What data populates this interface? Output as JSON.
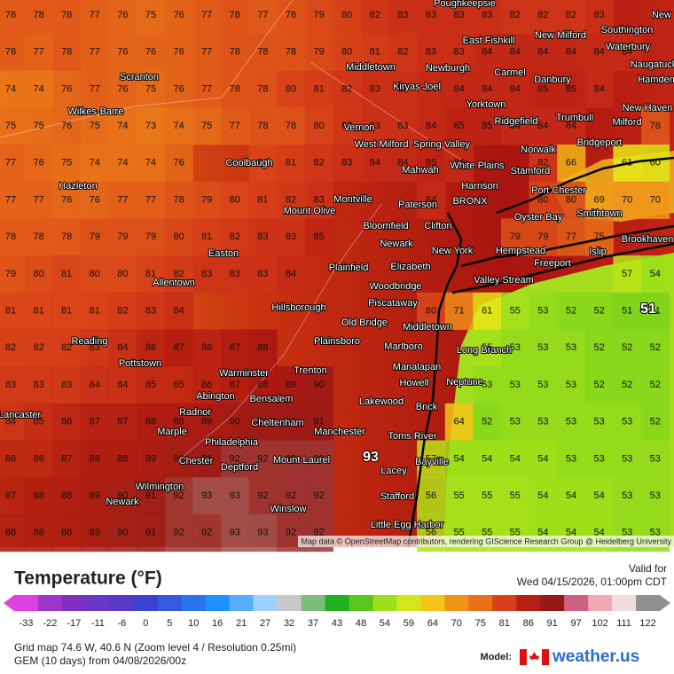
{
  "map": {
    "attribution": "Map data © OpenStreetMap contributors, rendering GIScience Research Group @ Heidelberg University",
    "max_label": "93",
    "min_label": "51",
    "grid": [
      [
        78,
        78,
        78,
        77,
        76,
        75,
        76,
        77,
        78,
        77,
        78,
        79,
        80,
        82,
        83,
        83,
        83,
        83,
        82,
        82,
        82,
        83,
        null,
        null
      ],
      [
        78,
        77,
        78,
        77,
        76,
        76,
        76,
        77,
        78,
        78,
        78,
        79,
        80,
        81,
        82,
        83,
        83,
        84,
        84,
        84,
        84,
        84,
        84,
        null
      ],
      [
        74,
        74,
        76,
        77,
        76,
        75,
        76,
        77,
        78,
        78,
        80,
        81,
        82,
        83,
        83,
        84,
        84,
        84,
        84,
        85,
        85,
        84,
        null,
        null
      ],
      [
        75,
        75,
        76,
        75,
        74,
        73,
        74,
        75,
        77,
        78,
        78,
        80,
        82,
        83,
        83,
        84,
        85,
        85,
        84,
        84,
        84,
        null,
        null,
        78
      ],
      [
        77,
        76,
        75,
        74,
        74,
        74,
        76,
        null,
        null,
        80,
        81,
        82,
        83,
        84,
        84,
        85,
        84,
        null,
        null,
        82,
        66,
        null,
        61,
        60
      ],
      [
        77,
        77,
        76,
        76,
        77,
        77,
        78,
        79,
        80,
        81,
        82,
        83,
        null,
        null,
        null,
        84,
        null,
        null,
        null,
        80,
        80,
        69,
        70,
        70
      ],
      [
        78,
        78,
        78,
        79,
        79,
        79,
        80,
        81,
        82,
        83,
        83,
        85,
        null,
        null,
        null,
        null,
        null,
        null,
        79,
        79,
        77,
        75,
        null,
        null
      ],
      [
        79,
        80,
        81,
        80,
        80,
        81,
        82,
        83,
        83,
        83,
        84,
        null,
        null,
        null,
        null,
        null,
        null,
        null,
        null,
        null,
        null,
        null,
        57,
        54
      ],
      [
        81,
        81,
        81,
        81,
        82,
        83,
        84,
        null,
        null,
        null,
        null,
        null,
        null,
        null,
        null,
        80,
        71,
        61,
        55,
        53,
        52,
        52,
        51,
        51
      ],
      [
        82,
        82,
        82,
        83,
        84,
        86,
        87,
        86,
        87,
        88,
        null,
        null,
        null,
        null,
        null,
        null,
        null,
        55,
        53,
        53,
        53,
        52,
        52,
        52
      ],
      [
        83,
        83,
        83,
        84,
        84,
        85,
        85,
        86,
        87,
        88,
        89,
        90,
        null,
        null,
        null,
        null,
        null,
        53,
        53,
        53,
        53,
        52,
        52,
        52
      ],
      [
        84,
        85,
        86,
        87,
        87,
        88,
        88,
        89,
        90,
        91,
        91,
        91,
        null,
        null,
        null,
        null,
        64,
        52,
        53,
        53,
        53,
        53,
        53,
        52
      ],
      [
        86,
        86,
        87,
        88,
        88,
        89,
        90,
        91,
        92,
        92,
        92,
        92,
        null,
        null,
        null,
        57,
        54,
        54,
        54,
        54,
        53,
        53,
        53,
        53
      ],
      [
        87,
        88,
        88,
        89,
        90,
        91,
        92,
        93,
        93,
        92,
        92,
        92,
        null,
        null,
        null,
        56,
        55,
        55,
        55,
        54,
        54,
        54,
        53,
        53
      ],
      [
        88,
        88,
        88,
        89,
        90,
        91,
        92,
        92,
        93,
        93,
        92,
        92,
        null,
        null,
        null,
        56,
        55,
        55,
        55,
        54,
        54,
        54,
        53,
        53
      ]
    ],
    "places": [
      "Poughkeepsie",
      "New",
      "East Fishkill",
      "New Milford",
      "Southington",
      "Waterbury",
      "Scranton",
      "Middletown",
      "Newburgh",
      "Carmel",
      "Danbury",
      "Naugatuck",
      "Kiryas Joel",
      "Hamden",
      "Wilkes-Barre",
      "Yorktown",
      "Ridgefield",
      "Trumbull",
      "Milford",
      "New Haven",
      "Vernon",
      "West Milford",
      "Spring Valley",
      "Norwalk",
      "Bridgeport",
      "White Plains",
      "Mahwah",
      "Stamford",
      "Coolbaugh",
      "Hazleton",
      "Harrison",
      "Port Chester",
      "Paterson",
      "BRONX",
      "Montville",
      "Mount Olive",
      "Smithtown",
      "Oyster Bay",
      "Bloomfield",
      "Clifton",
      "Newark",
      "New York",
      "Hempstead",
      "Brookhaven",
      "Islip",
      "Easton",
      "Freeport",
      "Elizabeth",
      "Plainfield",
      "Valley Stream",
      "Allentown",
      "Woodbridge",
      "Piscataway",
      "Hillsborough",
      "Old Bridge",
      "Middletown",
      "Reading",
      "Plainsboro",
      "Marlboro",
      "Long Branch",
      "Pottstown",
      "Manalapan",
      "Warminster",
      "Trenton",
      "Howell",
      "Neptune",
      "Abington",
      "Bensalem",
      "Lakewood",
      "Lancaster",
      "Radnor",
      "Brick",
      "Cheltenham",
      "Marple",
      "Manchester",
      "Toms River",
      "Philadelphia",
      "Chester",
      "Deptford",
      "Mount Laurel",
      "Bayville",
      "Lacey",
      "Wilmington",
      "Newark",
      "Stafford",
      "Winslow",
      "Little Egg Harbor"
    ]
  },
  "legend": {
    "title": "Temperature (°F)",
    "ticks": [
      -33,
      -22,
      -17,
      -11,
      -6,
      0,
      5,
      10,
      16,
      21,
      27,
      32,
      37,
      43,
      48,
      54,
      59,
      64,
      70,
      75,
      81,
      86,
      91,
      97,
      102,
      111,
      122
    ]
  },
  "footer": {
    "valid_label": "Valid for",
    "valid_time": "Wed 04/15/2026, 01:00pm CDT",
    "grid_info": "Grid map 74.6 W, 40.6 N (Zoom level 4 / Resolution 0.25mi)",
    "model_run": "GEM (10 days) from 04/08/2026/00z",
    "model_label": "Model:",
    "brand": "weather.us"
  }
}
